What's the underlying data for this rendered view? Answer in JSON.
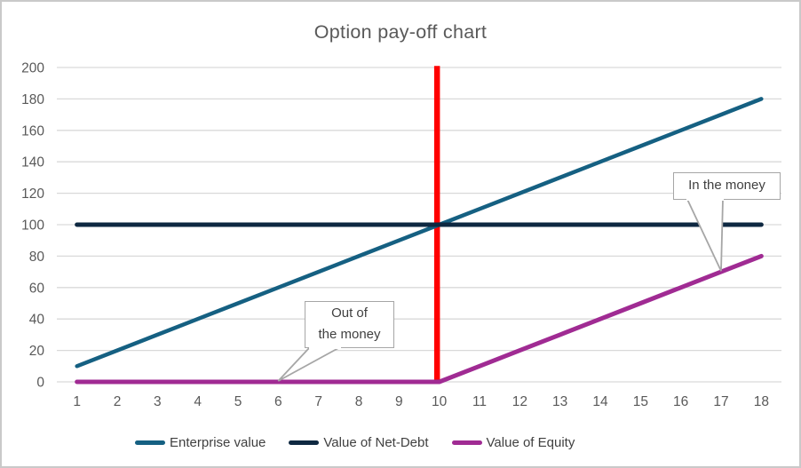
{
  "title": "Option pay-off chart",
  "chart_data": {
    "type": "line",
    "title": "Option pay-off chart",
    "x": [
      1,
      2,
      3,
      4,
      5,
      6,
      7,
      8,
      9,
      10,
      11,
      12,
      13,
      14,
      15,
      16,
      17,
      18
    ],
    "xlabel": "",
    "ylabel": "",
    "ylim": [
      0,
      200
    ],
    "y_tick_step": 20,
    "grid": true,
    "legend_position": "bottom",
    "series": [
      {
        "name": "Enterprise value",
        "color": "#156082",
        "values": [
          10,
          20,
          30,
          40,
          50,
          60,
          70,
          80,
          90,
          100,
          110,
          120,
          130,
          140,
          150,
          160,
          170,
          180
        ]
      },
      {
        "name": "Value of Net-Debt",
        "color": "#0E2841",
        "values": [
          100,
          100,
          100,
          100,
          100,
          100,
          100,
          100,
          100,
          100,
          100,
          100,
          100,
          100,
          100,
          100,
          100,
          100
        ]
      },
      {
        "name": "Value of Equity",
        "color": "#A02B93",
        "values": [
          0,
          0,
          0,
          0,
          0,
          0,
          0,
          0,
          0,
          0,
          10,
          20,
          30,
          40,
          50,
          60,
          70,
          80
        ]
      }
    ],
    "strike_line": {
      "x": 10,
      "from": 0,
      "to": 201,
      "color": "#FF0000"
    }
  },
  "annotations": [
    {
      "lines": [
        "Out of",
        "the money"
      ],
      "target_x": 6,
      "target_value": 0
    },
    {
      "lines": [
        "In the money"
      ],
      "target_x": 17,
      "target_value": 70
    }
  ],
  "colors": {
    "gridline": "#D9D9D9",
    "axis_text": "#595959",
    "title_text": "#595959",
    "legend_text": "#404040",
    "callout_border": "#A6A6A6",
    "callout_text": "#404040",
    "frame_border": "#C9C9C9",
    "background": "#FFFFFF"
  }
}
